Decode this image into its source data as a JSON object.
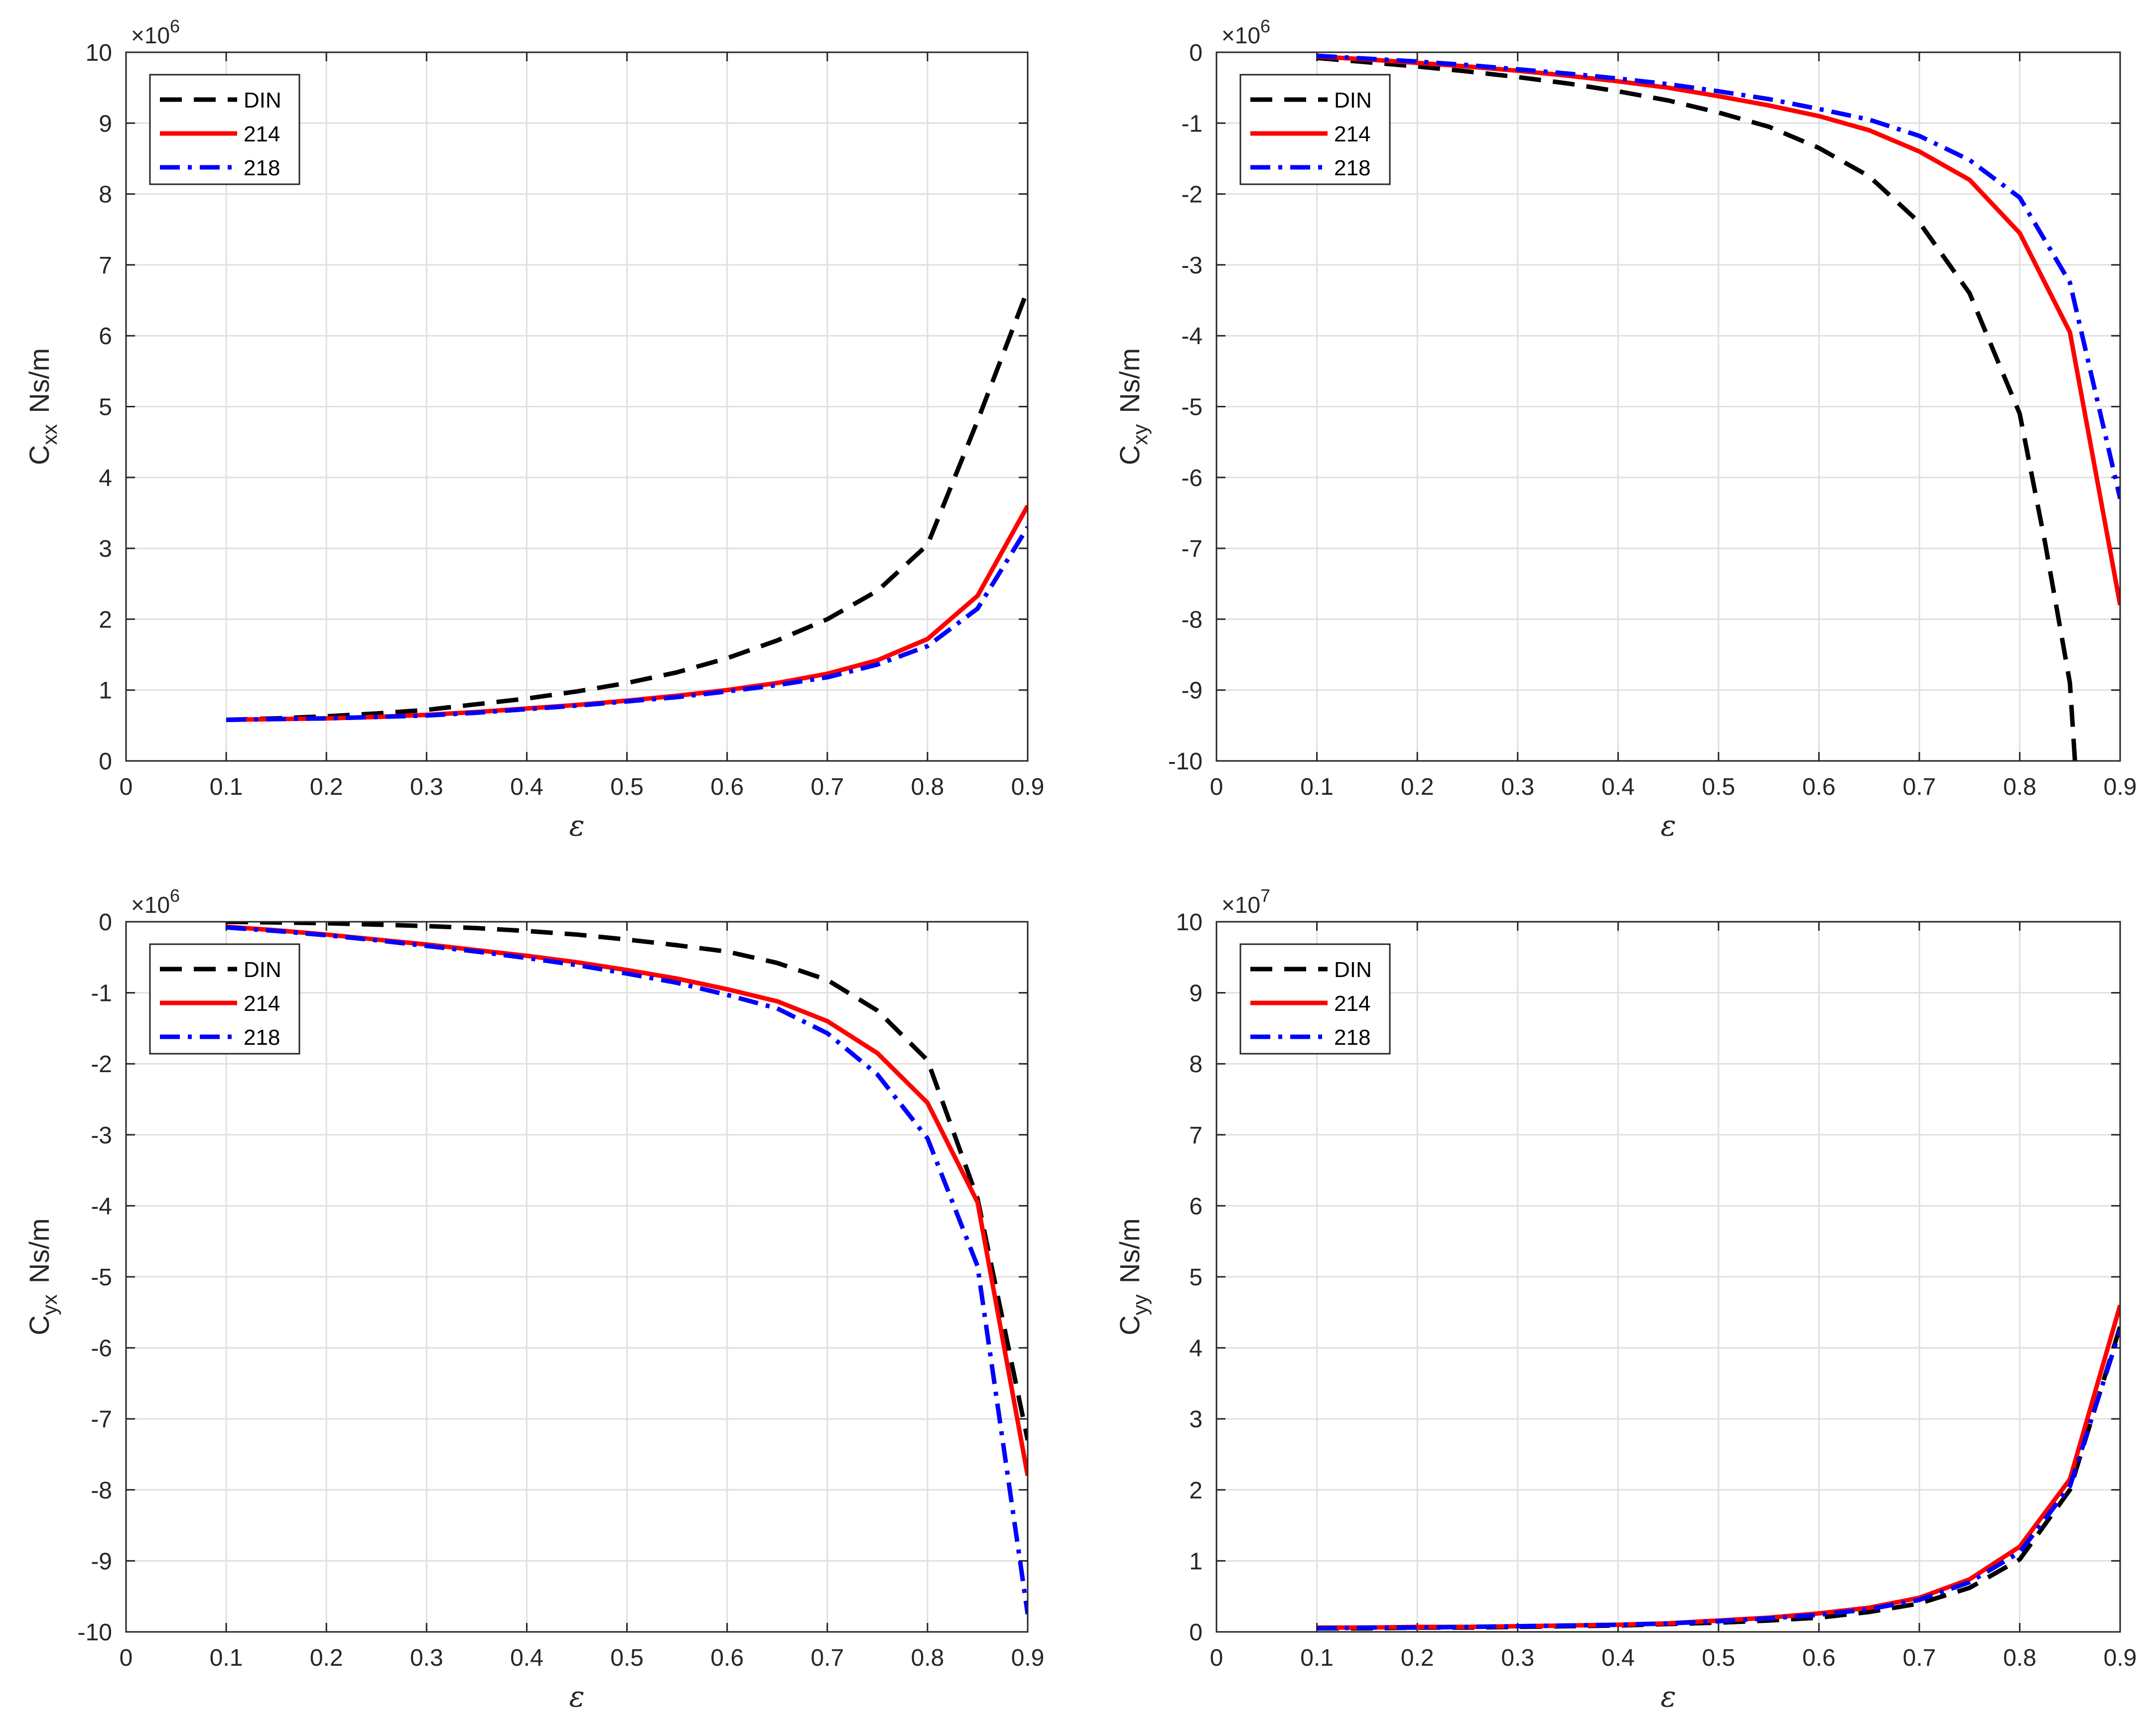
{
  "chart_data": [
    {
      "type": "line",
      "id": "cxx",
      "ylabel_main": "C",
      "ylabel_sub": "xx",
      "ylabel_unit": "Ns/m",
      "xlabel": "ε",
      "exponent": "×10",
      "exponent_power": "6",
      "xlim": [
        0,
        0.9
      ],
      "ylim": [
        0,
        10
      ],
      "xticks": [
        0,
        0.1,
        0.2,
        0.3,
        0.4,
        0.5,
        0.6,
        0.7,
        0.8,
        0.9
      ],
      "xtick_labels": [
        "0",
        "0.1",
        "0.2",
        "0.3",
        "0.4",
        "0.5",
        "0.6",
        "0.7",
        "0.8",
        "0.9"
      ],
      "yticks": [
        0,
        1,
        2,
        3,
        4,
        5,
        6,
        7,
        8,
        9,
        10
      ],
      "ytick_labels": [
        "0",
        "1",
        "2",
        "3",
        "4",
        "5",
        "6",
        "7",
        "8",
        "9",
        "10"
      ],
      "grid": true,
      "legend_position": "top-left",
      "series": [
        {
          "name": "DIN",
          "color": "#000000",
          "style": "dashed",
          "x": [
            0.1,
            0.15,
            0.2,
            0.25,
            0.3,
            0.35,
            0.4,
            0.45,
            0.5,
            0.55,
            0.6,
            0.65,
            0.7,
            0.75,
            0.8,
            0.85,
            0.9
          ],
          "y": [
            0.58,
            0.6,
            0.63,
            0.67,
            0.72,
            0.8,
            0.88,
            0.98,
            1.1,
            1.25,
            1.45,
            1.7,
            2.0,
            2.4,
            3.05,
            4.8,
            6.65
          ]
        },
        {
          "name": "214",
          "color": "#ff0000",
          "style": "solid",
          "x": [
            0.1,
            0.15,
            0.2,
            0.25,
            0.3,
            0.35,
            0.4,
            0.45,
            0.5,
            0.55,
            0.6,
            0.65,
            0.7,
            0.75,
            0.8,
            0.85,
            0.9
          ],
          "y": [
            0.58,
            0.59,
            0.6,
            0.62,
            0.65,
            0.69,
            0.74,
            0.79,
            0.85,
            0.92,
            1.0,
            1.1,
            1.23,
            1.42,
            1.72,
            2.33,
            3.6
          ]
        },
        {
          "name": "218",
          "color": "#0000ff",
          "style": "dashdot",
          "x": [
            0.1,
            0.15,
            0.2,
            0.25,
            0.3,
            0.35,
            0.4,
            0.45,
            0.5,
            0.55,
            0.6,
            0.65,
            0.7,
            0.75,
            0.8,
            0.85,
            0.9
          ],
          "y": [
            0.58,
            0.59,
            0.6,
            0.62,
            0.64,
            0.68,
            0.73,
            0.78,
            0.84,
            0.9,
            0.98,
            1.07,
            1.18,
            1.36,
            1.62,
            2.15,
            3.3
          ]
        }
      ]
    },
    {
      "type": "line",
      "id": "cxy",
      "ylabel_main": "C",
      "ylabel_sub": "xy",
      "ylabel_unit": "Ns/m",
      "xlabel": "ε",
      "exponent": "×10",
      "exponent_power": "6",
      "xlim": [
        0,
        0.9
      ],
      "ylim": [
        -10,
        0
      ],
      "xticks": [
        0,
        0.1,
        0.2,
        0.3,
        0.4,
        0.5,
        0.6,
        0.7,
        0.8,
        0.9
      ],
      "xtick_labels": [
        "0",
        "0.1",
        "0.2",
        "0.3",
        "0.4",
        "0.5",
        "0.6",
        "0.7",
        "0.8",
        "0.9"
      ],
      "yticks": [
        0,
        -1,
        -2,
        -3,
        -4,
        -5,
        -6,
        -7,
        -8,
        -9,
        -10
      ],
      "ytick_labels": [
        "0",
        "-1",
        "-2",
        "-3",
        "-4",
        "-5",
        "-6",
        "-7",
        "-8",
        "-9",
        "-10"
      ],
      "grid": true,
      "legend_position": "top-left",
      "series": [
        {
          "name": "DIN",
          "color": "#000000",
          "style": "dashed",
          "x": [
            0.1,
            0.15,
            0.2,
            0.25,
            0.3,
            0.35,
            0.4,
            0.45,
            0.5,
            0.55,
            0.6,
            0.65,
            0.7,
            0.75,
            0.8,
            0.825,
            0.85,
            0.855
          ],
          "y": [
            -0.08,
            -0.14,
            -0.2,
            -0.27,
            -0.35,
            -0.44,
            -0.55,
            -0.68,
            -0.85,
            -1.05,
            -1.35,
            -1.75,
            -2.4,
            -3.4,
            -5.1,
            -6.9,
            -8.9,
            -10.0
          ]
        },
        {
          "name": "214",
          "color": "#ff0000",
          "style": "solid",
          "x": [
            0.1,
            0.15,
            0.2,
            0.25,
            0.3,
            0.35,
            0.4,
            0.45,
            0.5,
            0.55,
            0.6,
            0.65,
            0.7,
            0.75,
            0.8,
            0.85,
            0.9
          ],
          "y": [
            -0.06,
            -0.1,
            -0.15,
            -0.2,
            -0.26,
            -0.33,
            -0.41,
            -0.5,
            -0.62,
            -0.75,
            -0.9,
            -1.1,
            -1.4,
            -1.8,
            -2.55,
            -3.95,
            -7.8
          ]
        },
        {
          "name": "218",
          "color": "#0000ff",
          "style": "dashdot",
          "x": [
            0.1,
            0.15,
            0.2,
            0.25,
            0.3,
            0.35,
            0.4,
            0.45,
            0.5,
            0.55,
            0.6,
            0.65,
            0.7,
            0.75,
            0.8,
            0.85,
            0.9
          ],
          "y": [
            -0.05,
            -0.09,
            -0.13,
            -0.18,
            -0.24,
            -0.3,
            -0.37,
            -0.45,
            -0.55,
            -0.66,
            -0.8,
            -0.95,
            -1.18,
            -1.52,
            -2.05,
            -3.25,
            -6.3
          ]
        }
      ]
    },
    {
      "type": "line",
      "id": "cyx",
      "ylabel_main": "C",
      "ylabel_sub": "yx",
      "ylabel_unit": "Ns/m",
      "xlabel": "ε",
      "exponent": "×10",
      "exponent_power": "6",
      "xlim": [
        0,
        0.9
      ],
      "ylim": [
        -10,
        0
      ],
      "xticks": [
        0,
        0.1,
        0.2,
        0.3,
        0.4,
        0.5,
        0.6,
        0.7,
        0.8,
        0.9
      ],
      "xtick_labels": [
        "0",
        "0.1",
        "0.2",
        "0.3",
        "0.4",
        "0.5",
        "0.6",
        "0.7",
        "0.8",
        "0.9"
      ],
      "yticks": [
        0,
        -1,
        -2,
        -3,
        -4,
        -5,
        -6,
        -7,
        -8,
        -9,
        -10
      ],
      "ytick_labels": [
        "0",
        "-1",
        "-2",
        "-3",
        "-4",
        "-5",
        "-6",
        "-7",
        "-8",
        "-9",
        "-10"
      ],
      "grid": true,
      "legend_position": "top-left",
      "series": [
        {
          "name": "DIN",
          "color": "#000000",
          "style": "dashed",
          "x": [
            0.1,
            0.15,
            0.2,
            0.25,
            0.3,
            0.35,
            0.4,
            0.45,
            0.5,
            0.55,
            0.6,
            0.65,
            0.7,
            0.75,
            0.8,
            0.85,
            0.9
          ],
          "y": [
            0.0,
            -0.01,
            -0.02,
            -0.04,
            -0.06,
            -0.09,
            -0.13,
            -0.18,
            -0.25,
            -0.33,
            -0.42,
            -0.58,
            -0.82,
            -1.25,
            -1.95,
            -3.9,
            -7.3
          ]
        },
        {
          "name": "214",
          "color": "#ff0000",
          "style": "solid",
          "x": [
            0.1,
            0.15,
            0.2,
            0.25,
            0.3,
            0.35,
            0.4,
            0.45,
            0.5,
            0.55,
            0.6,
            0.65,
            0.7,
            0.75,
            0.8,
            0.85,
            0.9
          ],
          "y": [
            -0.07,
            -0.12,
            -0.18,
            -0.25,
            -0.32,
            -0.4,
            -0.48,
            -0.57,
            -0.68,
            -0.8,
            -0.95,
            -1.12,
            -1.4,
            -1.85,
            -2.55,
            -3.95,
            -7.8
          ]
        },
        {
          "name": "218",
          "color": "#0000ff",
          "style": "dashdot",
          "x": [
            0.1,
            0.15,
            0.2,
            0.25,
            0.3,
            0.35,
            0.4,
            0.45,
            0.5,
            0.55,
            0.6,
            0.65,
            0.7,
            0.75,
            0.8,
            0.85,
            0.9
          ],
          "y": [
            -0.08,
            -0.13,
            -0.19,
            -0.26,
            -0.34,
            -0.42,
            -0.51,
            -0.61,
            -0.73,
            -0.86,
            -1.03,
            -1.22,
            -1.57,
            -2.15,
            -3.05,
            -4.85,
            -9.75
          ]
        }
      ]
    },
    {
      "type": "line",
      "id": "cyy",
      "ylabel_main": "C",
      "ylabel_sub": "yy",
      "ylabel_unit": "Ns/m",
      "xlabel": "ε",
      "exponent": "×10",
      "exponent_power": "7",
      "xlim": [
        0,
        0.9
      ],
      "ylim": [
        0,
        10
      ],
      "xticks": [
        0,
        0.1,
        0.2,
        0.3,
        0.4,
        0.5,
        0.6,
        0.7,
        0.8,
        0.9
      ],
      "xtick_labels": [
        "0",
        "0.1",
        "0.2",
        "0.3",
        "0.4",
        "0.5",
        "0.6",
        "0.7",
        "0.8",
        "0.9"
      ],
      "yticks": [
        0,
        1,
        2,
        3,
        4,
        5,
        6,
        7,
        8,
        9,
        10
      ],
      "ytick_labels": [
        "0",
        "1",
        "2",
        "3",
        "4",
        "5",
        "6",
        "7",
        "8",
        "9",
        "10"
      ],
      "grid": true,
      "legend_position": "top-left",
      "series": [
        {
          "name": "DIN",
          "color": "#000000",
          "style": "dashed",
          "x": [
            0.1,
            0.15,
            0.2,
            0.25,
            0.3,
            0.35,
            0.4,
            0.45,
            0.5,
            0.55,
            0.6,
            0.65,
            0.7,
            0.75,
            0.8,
            0.85,
            0.9
          ],
          "y": [
            0.05,
            0.05,
            0.06,
            0.06,
            0.07,
            0.08,
            0.09,
            0.11,
            0.13,
            0.16,
            0.2,
            0.28,
            0.4,
            0.62,
            1.02,
            2.0,
            4.3
          ]
        },
        {
          "name": "214",
          "color": "#ff0000",
          "style": "solid",
          "x": [
            0.1,
            0.15,
            0.2,
            0.25,
            0.3,
            0.35,
            0.4,
            0.45,
            0.5,
            0.55,
            0.6,
            0.65,
            0.7,
            0.75,
            0.8,
            0.85,
            0.9
          ],
          "y": [
            0.06,
            0.06,
            0.07,
            0.07,
            0.08,
            0.09,
            0.1,
            0.12,
            0.16,
            0.2,
            0.26,
            0.34,
            0.48,
            0.74,
            1.2,
            2.15,
            4.6
          ]
        },
        {
          "name": "218",
          "color": "#0000ff",
          "style": "dashdot",
          "x": [
            0.1,
            0.15,
            0.2,
            0.25,
            0.3,
            0.35,
            0.4,
            0.45,
            0.5,
            0.55,
            0.6,
            0.65,
            0.7,
            0.75,
            0.8,
            0.85,
            0.9
          ],
          "y": [
            0.05,
            0.06,
            0.06,
            0.07,
            0.08,
            0.09,
            0.1,
            0.12,
            0.15,
            0.19,
            0.24,
            0.32,
            0.45,
            0.7,
            1.12,
            2.05,
            4.25
          ]
        }
      ]
    }
  ]
}
